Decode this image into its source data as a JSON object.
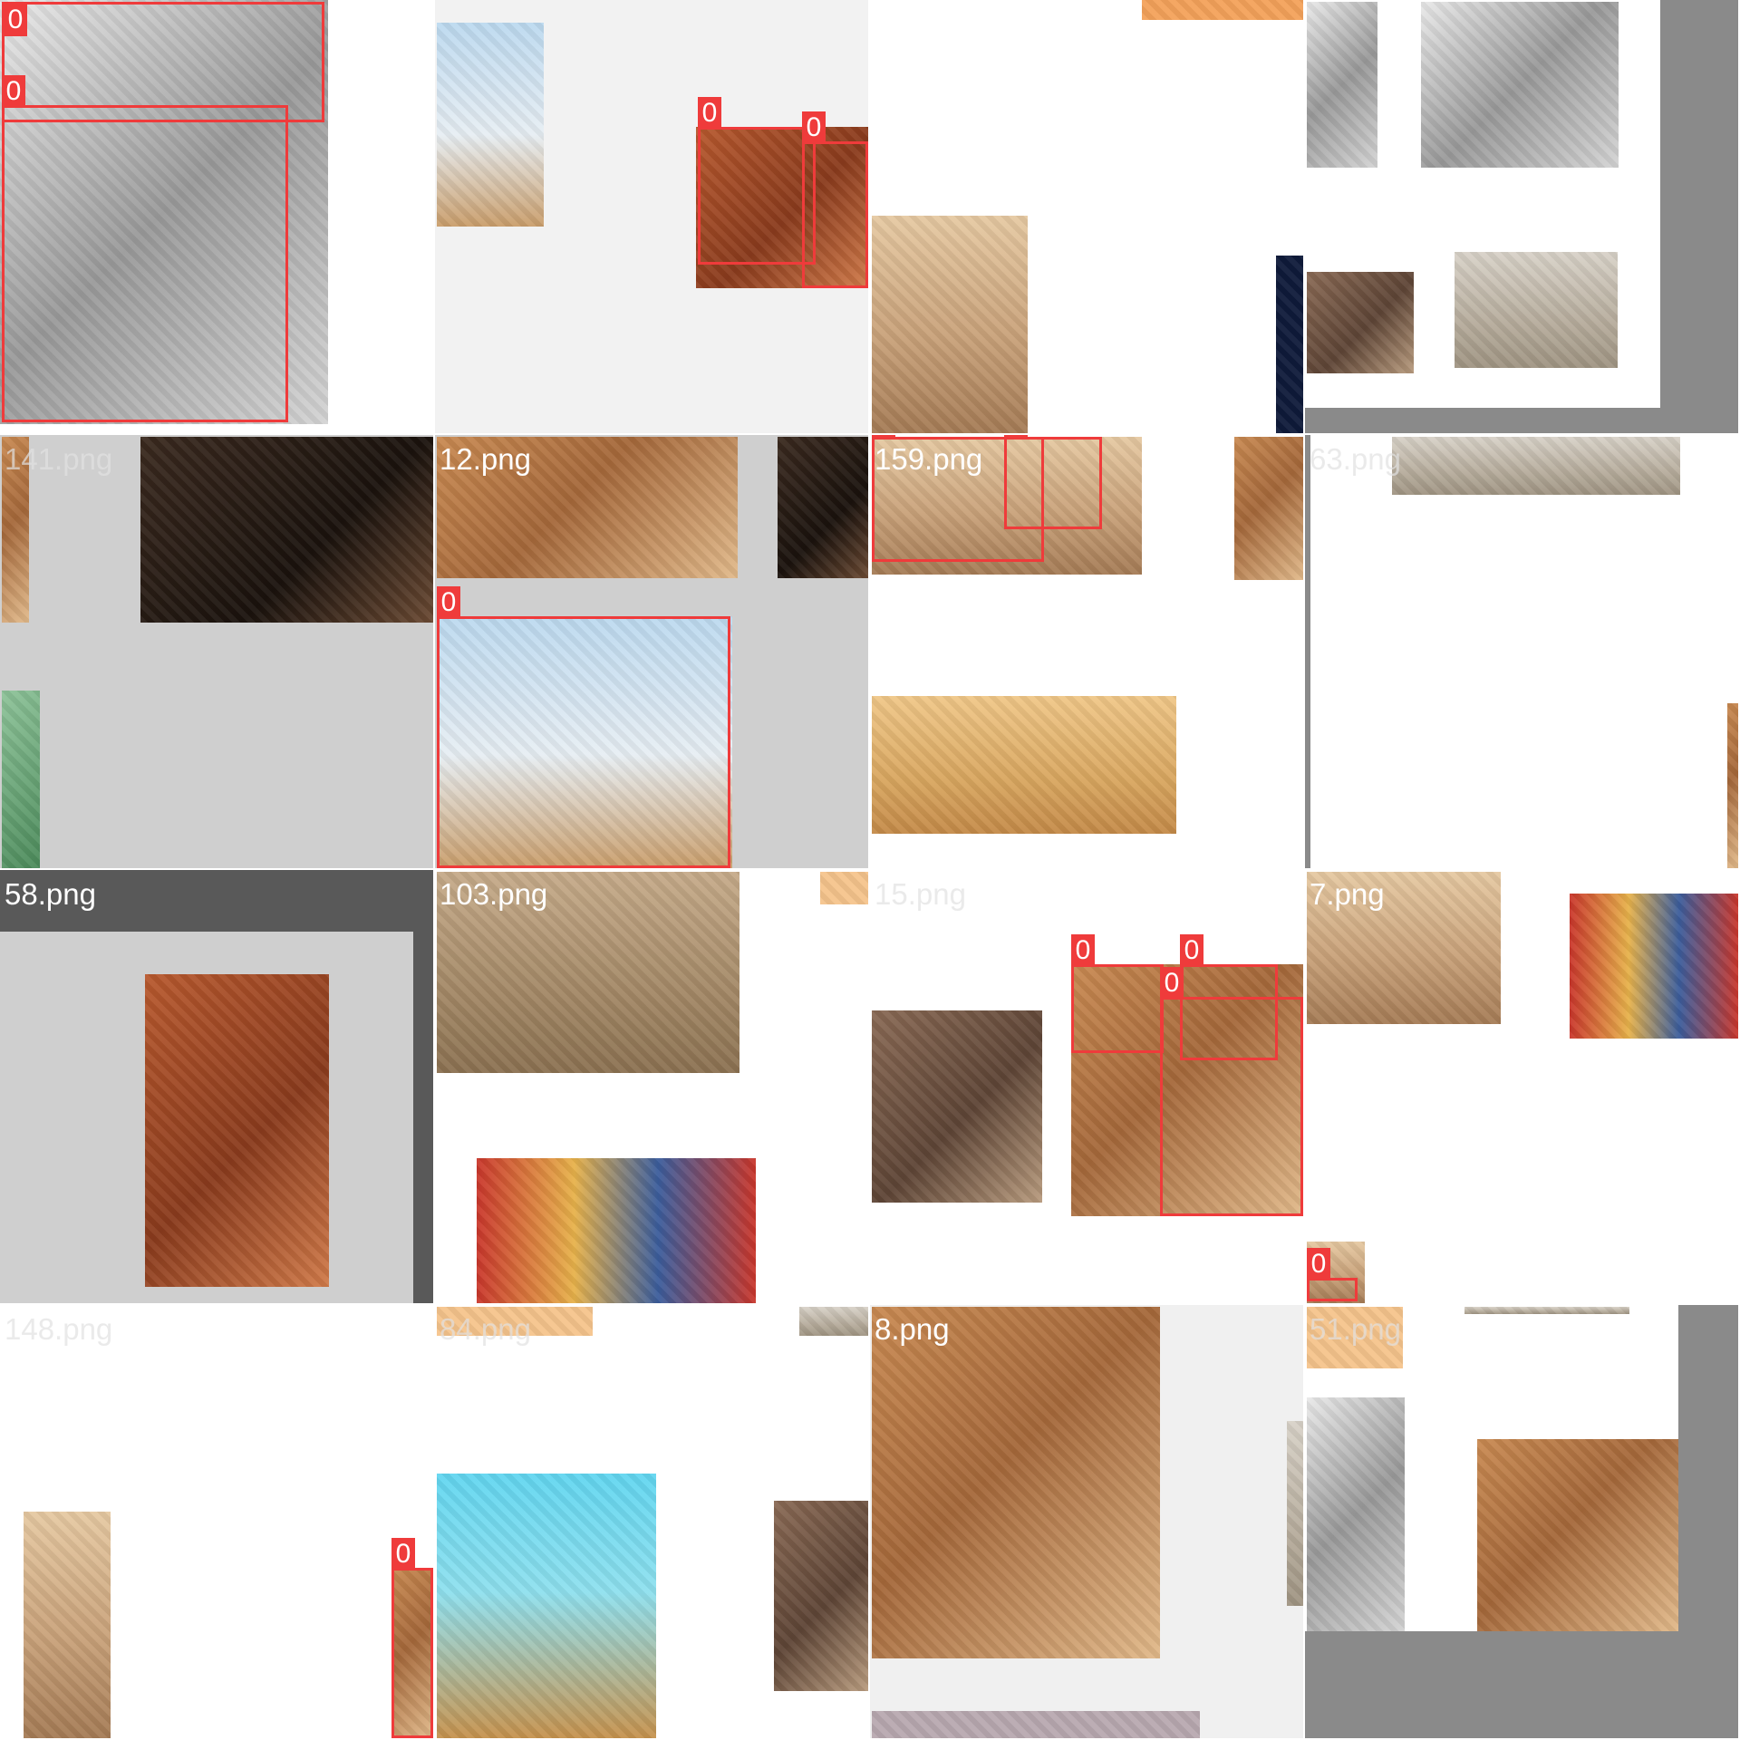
{
  "mosaic": {
    "tile_labels": {
      "t04": "141.png",
      "t05": "12.png",
      "t06": "159.png",
      "t07": "63.png",
      "t08": "58.png",
      "t09": "103.png",
      "t10": "15.png",
      "t11": "7.png",
      "t12": "148.png",
      "t13": "84.png",
      "t14": "8.png",
      "t15": "51.png"
    },
    "detection_class": "0",
    "box_color": "#ef3b3b",
    "detections_count": 13
  }
}
